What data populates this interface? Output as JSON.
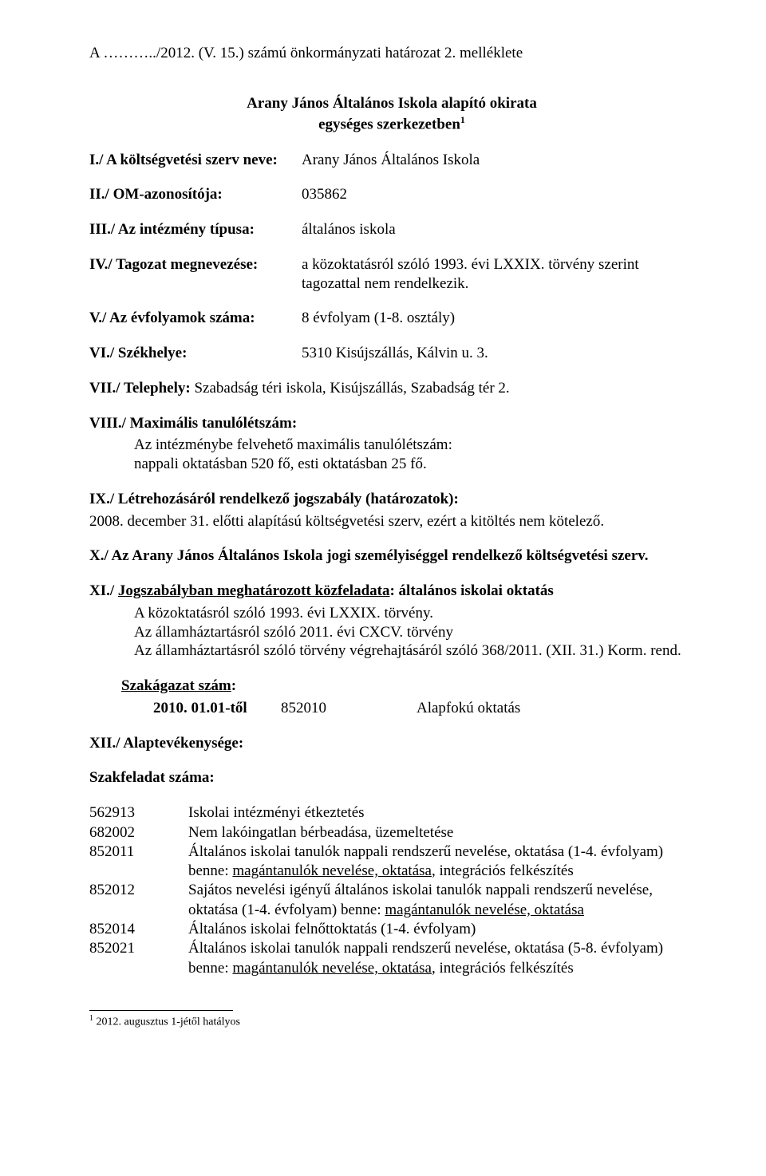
{
  "header": {
    "top_line": "A ………../2012. (V. 15.) számú önkormányzati határozat 2. melléklete",
    "title_line1": "Arany János Általános Iskola alapító okirata",
    "title_line2": "egységes szerkezetben",
    "title_sup": "1"
  },
  "rows": {
    "r1": {
      "label": "I./ A költségvetési szerv neve:",
      "value": "Arany János Általános Iskola"
    },
    "r2": {
      "label": "II./ OM-azonosítója:",
      "value": "035862"
    },
    "r3": {
      "label": "III./ Az intézmény típusa:",
      "value": "általános iskola"
    },
    "r4": {
      "label": "IV./ Tagozat megnevezése:",
      "value": "a közoktatásról szóló 1993. évi LXXIX. törvény szerint tagozattal nem rendelkezik."
    },
    "r5": {
      "label": "V./ Az évfolyamok száma:",
      "value": "8 évfolyam (1-8. osztály)"
    },
    "r6": {
      "label": "VI./ Székhelye:",
      "value": "5310 Kisújszállás, Kálvin u. 3."
    }
  },
  "vii": {
    "label": "VII./ Telephely: ",
    "text": "Szabadság téri iskola, Kisújszállás, Szabadság tér 2."
  },
  "viii": {
    "label": "VIII./ Maximális tanulólétszám:",
    "line1": "Az intézménybe felvehető maximális tanulólétszám:",
    "line2": "nappali oktatásban 520 fő, esti oktatásban 25 fő."
  },
  "ix": {
    "label": "IX./ Létrehozásáról rendelkező jogszabály (határozatok):",
    "text": "2008. december 31. előtti alapítású költségvetési szerv, ezért a kitöltés nem kötelező."
  },
  "x": {
    "text": "X./ Az Arany János Általános Iskola jogi személyiséggel rendelkező költségvetési szerv."
  },
  "xi": {
    "label_part1": "XI./ ",
    "label_part2_u": "Jogszabályban meghatározott közfeladata",
    "label_part3": ": általános iskolai oktatás",
    "line1": "A közoktatásról szóló 1993. évi LXXIX. törvény.",
    "line2": "Az államháztartásról szóló 2011. évi CXCV. törvény",
    "line3": "Az államháztartásról szóló törvény végrehajtásáról szóló 368/2011. (XII. 31.) Korm. rend."
  },
  "szak": {
    "header_u": "Szakágazat szám",
    "header_colon": ":",
    "row_label": "2010. 01.01-től",
    "row_code": "852010",
    "row_name": "Alapfokú oktatás"
  },
  "xii": {
    "label": "XII./ Alaptevékenysége:"
  },
  "szakfeladat_header": "Szakfeladat száma:",
  "tasks": [
    {
      "code": "562913",
      "parts": [
        {
          "t": "Iskolai intézményi étkeztetés"
        }
      ]
    },
    {
      "code": "682002",
      "parts": [
        {
          "t": "Nem lakóingatlan bérbeadása, üzemeltetése"
        }
      ]
    },
    {
      "code": "852011",
      "parts": [
        {
          "t": "Általános iskolai tanulók nappali rendszerű nevelése, oktatása (1-4. évfolyam) benne: "
        },
        {
          "t": "magántanulók nevelése, oktatása",
          "u": true
        },
        {
          "t": ", integrációs felkészítés"
        }
      ]
    },
    {
      "code": "852012",
      "parts": [
        {
          "t": "Sajátos nevelési igényű általános iskolai tanulók nappali rendszerű nevelése, oktatása (1-4. évfolyam) benne: "
        },
        {
          "t": "magántanulók nevelése, oktatása",
          "u": true
        }
      ]
    },
    {
      "code": "852014",
      "parts": [
        {
          "t": "Általános iskolai felnőttoktatás (1-4. évfolyam)"
        }
      ]
    },
    {
      "code": "852021",
      "parts": [
        {
          "t": "Általános iskolai tanulók nappali rendszerű nevelése, oktatása (5-8. évfolyam) benne: "
        },
        {
          "t": "magántanulók nevelése, oktatása",
          "u": true
        },
        {
          "t": ", integrációs felkészítés"
        }
      ]
    }
  ],
  "footnote": {
    "num": "1",
    "text": " 2012. augusztus 1-jétől hatályos"
  }
}
